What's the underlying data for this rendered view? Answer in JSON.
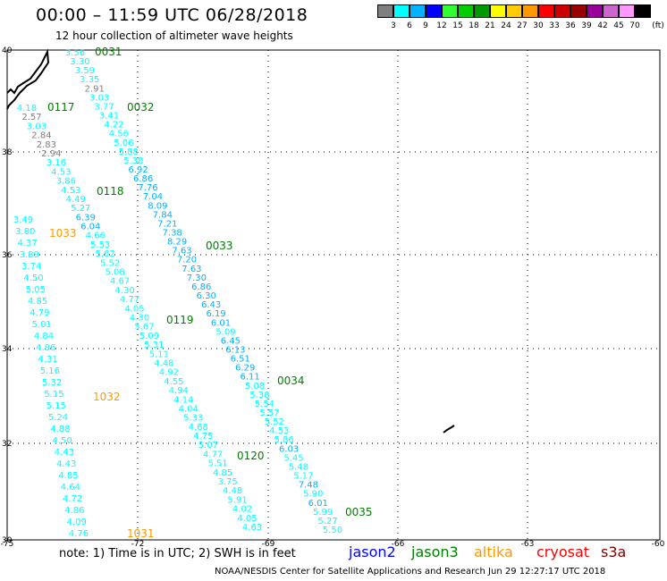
{
  "header": {
    "title": "00:00  –  11:59 UTC 06/28/2018",
    "subtitle": "12 hour collection of altimeter wave heights"
  },
  "legend": {
    "unit": "(ft)",
    "bins": [
      {
        "label": "3",
        "color": "#7f7f7f"
      },
      {
        "label": "6",
        "color": "#00ffff"
      },
      {
        "label": "9",
        "color": "#00b2ff"
      },
      {
        "label": "12",
        "color": "#0000ff"
      },
      {
        "label": "15",
        "color": "#32ff32"
      },
      {
        "label": "18",
        "color": "#00cc00"
      },
      {
        "label": "21",
        "color": "#009900"
      },
      {
        "label": "24",
        "color": "#ffff00"
      },
      {
        "label": "27",
        "color": "#ffcc00"
      },
      {
        "label": "30",
        "color": "#ff9900"
      },
      {
        "label": "33",
        "color": "#ff0000"
      },
      {
        "label": "36",
        "color": "#cc0000"
      },
      {
        "label": "39",
        "color": "#990000"
      },
      {
        "label": "42",
        "color": "#990099"
      },
      {
        "label": "45",
        "color": "#cc66cc"
      },
      {
        "label": "70",
        "color": "#ff99ff"
      },
      {
        "label": "",
        "color": "#000000"
      }
    ]
  },
  "axes": {
    "lat_labels": [
      "40",
      "38",
      "36",
      "34",
      "32",
      "30"
    ],
    "lon_labels": [
      "-75",
      "-72",
      "-69",
      "-66",
      "-63",
      "-60"
    ]
  },
  "passes": [
    {
      "time": "0031",
      "color": "#008000",
      "values": [
        "3.56",
        "3.30",
        "3.59",
        "3.35",
        "2.91",
        "3.03",
        "3.77",
        "3.41",
        "4.22",
        "4.56",
        "5.06",
        "5.88",
        "5.38",
        "6.92",
        "6.86",
        "7.76",
        "7.04",
        "8.09",
        "7.84",
        "7.21",
        "7.38",
        "8.29",
        "7.63",
        "7.20",
        "7.63",
        "7.30",
        "6.86",
        "6.30",
        "6.43",
        "6.19",
        "6.01",
        "5.09",
        "6.45",
        "6.13",
        "6.51",
        "6.29",
        "6.11",
        "5.08",
        "5.38",
        "5.54",
        "5.57",
        "5.52",
        "4.53",
        "5.86",
        "6.03",
        "5.45",
        "5.48",
        "5.17",
        "7.48",
        "5.90",
        "6.01",
        "5.99",
        "5.27",
        "5.50"
      ]
    },
    {
      "time": "0032",
      "color": "#008000"
    },
    {
      "time": "0033",
      "color": "#008000"
    },
    {
      "time": "0034",
      "color": "#008000"
    },
    {
      "time": "0035",
      "color": "#008000"
    },
    {
      "time": "0117",
      "color": "#008000",
      "values": [
        "4.18",
        "2.57",
        "3.03",
        "2.84",
        "2.83",
        "2.94",
        "3.16",
        "4.53",
        "3.86",
        "4.53",
        "4.49",
        "5.27",
        "6.39",
        "6.04",
        "4.66",
        "5.53",
        "5.62",
        "5.52",
        "5.08",
        "4.67",
        "4.30",
        "4.77",
        "4.05",
        "4.30",
        "5.67",
        "5.09",
        "5.31",
        "5.11",
        "4.48",
        "4.92",
        "4.55",
        "4.94",
        "4.14",
        "4.04",
        "5.33",
        "4.68",
        "4.75",
        "5.07",
        "4.77",
        "5.51",
        "4.85",
        "3.75",
        "4.48",
        "5.91",
        "4.02",
        "4.05",
        "4.63"
      ]
    },
    {
      "time": "0118",
      "color": "#008000"
    },
    {
      "time": "0119",
      "color": "#008000"
    },
    {
      "time": "0120",
      "color": "#008000"
    },
    {
      "time": "1033",
      "color": "#ff9900",
      "values": [
        "3.49",
        "3.80",
        "4.37",
        "3.89",
        "3.74",
        "4.50",
        "5.05",
        "4.85",
        "4.79",
        "5.01",
        "4.84",
        "4.86",
        "4.31",
        "5.16",
        "5.32",
        "5.15",
        "5.15",
        "5.24",
        "4.88",
        "4.50",
        "4.43",
        "4.43",
        "4.85",
        "4.64",
        "4.72",
        "4.86",
        "4.09",
        "4.76"
      ]
    },
    {
      "time": "1032",
      "color": "#ff9900"
    },
    {
      "time": "1031",
      "color": "#ff9900"
    }
  ],
  "footer": {
    "note": "note:  1) Time is in UTC;  2) SWH is in feet",
    "satellites": [
      {
        "name": "jason2",
        "color": "#0000ff"
      },
      {
        "name": "jason3",
        "color": "#008000"
      },
      {
        "name": "altika",
        "color": "#ff9900"
      },
      {
        "name": "cryosat",
        "color": "#ff0000"
      },
      {
        "name": "s3a",
        "color": "#800000"
      }
    ],
    "credit": "NOAA/NESDIS Center for Satellite Applications and Research    Jun 29 12:27:17 UTC 2018"
  }
}
